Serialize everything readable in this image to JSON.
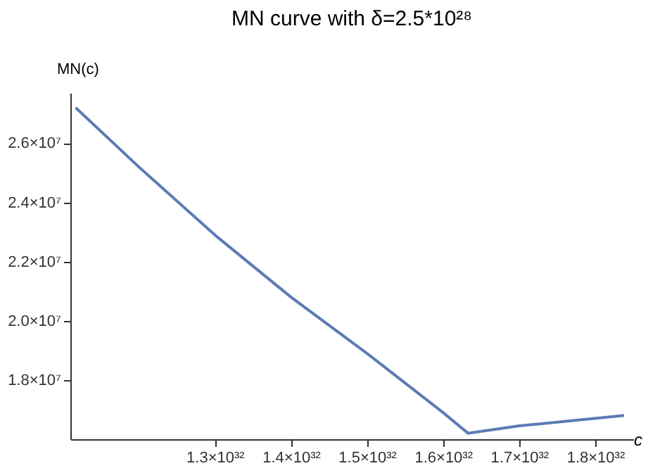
{
  "chart_data": {
    "type": "line",
    "title": "MN curve with δ=2.5*10²⁸",
    "xlabel": "c",
    "ylabel": "MN(c)",
    "x": [
      1.117e+32,
      1.2e+32,
      1.3e+32,
      1.4e+32,
      1.5e+32,
      1.6e+32,
      1.633e+32,
      1.7e+32,
      1.838e+32
    ],
    "series": [
      {
        "color": "#5b7bb5",
        "values": [
          27200000.0,
          25200000.0,
          22900000.0,
          20800000.0,
          18900000.0,
          16900000.0,
          16200000.0,
          16450000.0,
          16800000.0
        ]
      }
    ],
    "xlim": [
      1.11e+32,
      1.85e+32
    ],
    "ylim": [
      16000000.0,
      27700000.0
    ],
    "xticks": [
      {
        "value": 1.3e+32,
        "label": "1.3×10³²"
      },
      {
        "value": 1.4e+32,
        "label": "1.4×10³²"
      },
      {
        "value": 1.5e+32,
        "label": "1.5×10³²"
      },
      {
        "value": 1.6e+32,
        "label": "1.6×10³²"
      },
      {
        "value": 1.7e+32,
        "label": "1.7×10³²"
      },
      {
        "value": 1.8e+32,
        "label": "1.8×10³²"
      }
    ],
    "yticks": [
      {
        "value": 18000000.0,
        "label": "1.8×10⁷"
      },
      {
        "value": 20000000.0,
        "label": "2.0×10⁷"
      },
      {
        "value": 22000000.0,
        "label": "2.2×10⁷"
      },
      {
        "value": 24000000.0,
        "label": "2.4×10⁷"
      },
      {
        "value": 26000000.0,
        "label": "2.6×10⁷"
      }
    ],
    "grid": false,
    "marker": "none",
    "line_style": "solid"
  }
}
